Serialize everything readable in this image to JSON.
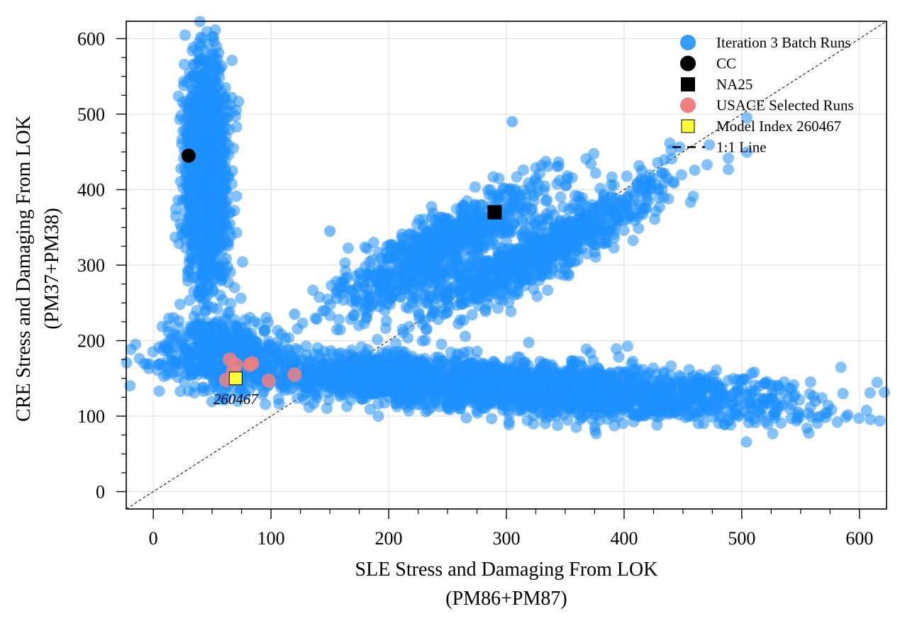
{
  "chart_data": {
    "type": "scatter",
    "title": "",
    "xlabel": [
      "SLE Stress and Damaging From LOK",
      "(PM86+PM87)"
    ],
    "ylabel": [
      "CRE Stress and Damaging From LOK",
      "(PM37+PM38)"
    ],
    "xlim": [
      -23,
      623
    ],
    "ylim": [
      -23,
      623
    ],
    "xticks": [
      0,
      100,
      200,
      300,
      400,
      500,
      600
    ],
    "yticks": [
      0,
      100,
      200,
      300,
      400,
      500,
      600
    ],
    "xtick_labels": [
      "0",
      "100",
      "200",
      "300",
      "400",
      "500",
      "600"
    ],
    "ytick_labels": [
      "0",
      "100",
      "200",
      "300",
      "400",
      "500",
      "600"
    ],
    "grid": true,
    "legend_position": "top-right",
    "series": [
      {
        "name": "Iteration 3 Batch Runs",
        "marker": "circle",
        "color": "#1E90FF",
        "regions": [
          {
            "label": "vertical arm",
            "center": [
              45,
              420
            ],
            "x_spread": 9,
            "y_spread": 75,
            "slope": -0.09,
            "count": 1400
          },
          {
            "label": "corner",
            "center": [
              60,
              185
            ],
            "x_spread": 22,
            "y_spread": 25,
            "slope": 0,
            "count": 450
          },
          {
            "label": "horizontal arm",
            "center": [
              300,
              140
            ],
            "x_spread": 125,
            "y_spread": 17,
            "slope": -0.1,
            "count": 2600
          },
          {
            "label": "upper diagonal arm",
            "center": [
              245,
              325
            ],
            "x_spread": 45,
            "y_spread": 22,
            "slope": 0.85,
            "count": 800
          },
          {
            "label": "lower diagonal arm",
            "center": [
              330,
              320
            ],
            "x_spread": 55,
            "y_spread": 20,
            "slope": 0.8,
            "count": 800
          }
        ],
        "extreme_points": [
          [
            38,
            582
          ],
          [
            548,
            105
          ],
          [
            305,
            490
          ],
          [
            437,
            415
          ],
          [
            415,
            425
          ],
          [
            150,
            345
          ],
          [
            120,
            235
          ],
          [
            60,
            215
          ]
        ]
      },
      {
        "name": "CC",
        "marker": "circle",
        "color": "#000000",
        "points": [
          [
            30,
            445
          ]
        ]
      },
      {
        "name": "NA25",
        "marker": "square",
        "color": "#000000",
        "points": [
          [
            290,
            370
          ]
        ]
      },
      {
        "name": "USACE Selected Runs",
        "marker": "circle",
        "color": "#F08080",
        "points": [
          [
            65,
            175
          ],
          [
            70,
            168
          ],
          [
            82,
            168
          ],
          [
            84,
            170
          ],
          [
            120,
            155
          ],
          [
            98,
            147
          ],
          [
            62,
            148
          ],
          [
            68,
            160
          ]
        ]
      },
      {
        "name": "Model Index 260467",
        "marker": "square",
        "color": "#FFFF33",
        "points": [
          [
            70,
            150
          ]
        ]
      },
      {
        "name": "1:1 Line",
        "marker": "dashed-line",
        "color": "#000000",
        "points": [
          [
            -23,
            -23
          ],
          [
            623,
            623
          ]
        ]
      }
    ],
    "annotations": [
      {
        "text": "260467",
        "x": 70,
        "y": 150
      }
    ]
  }
}
